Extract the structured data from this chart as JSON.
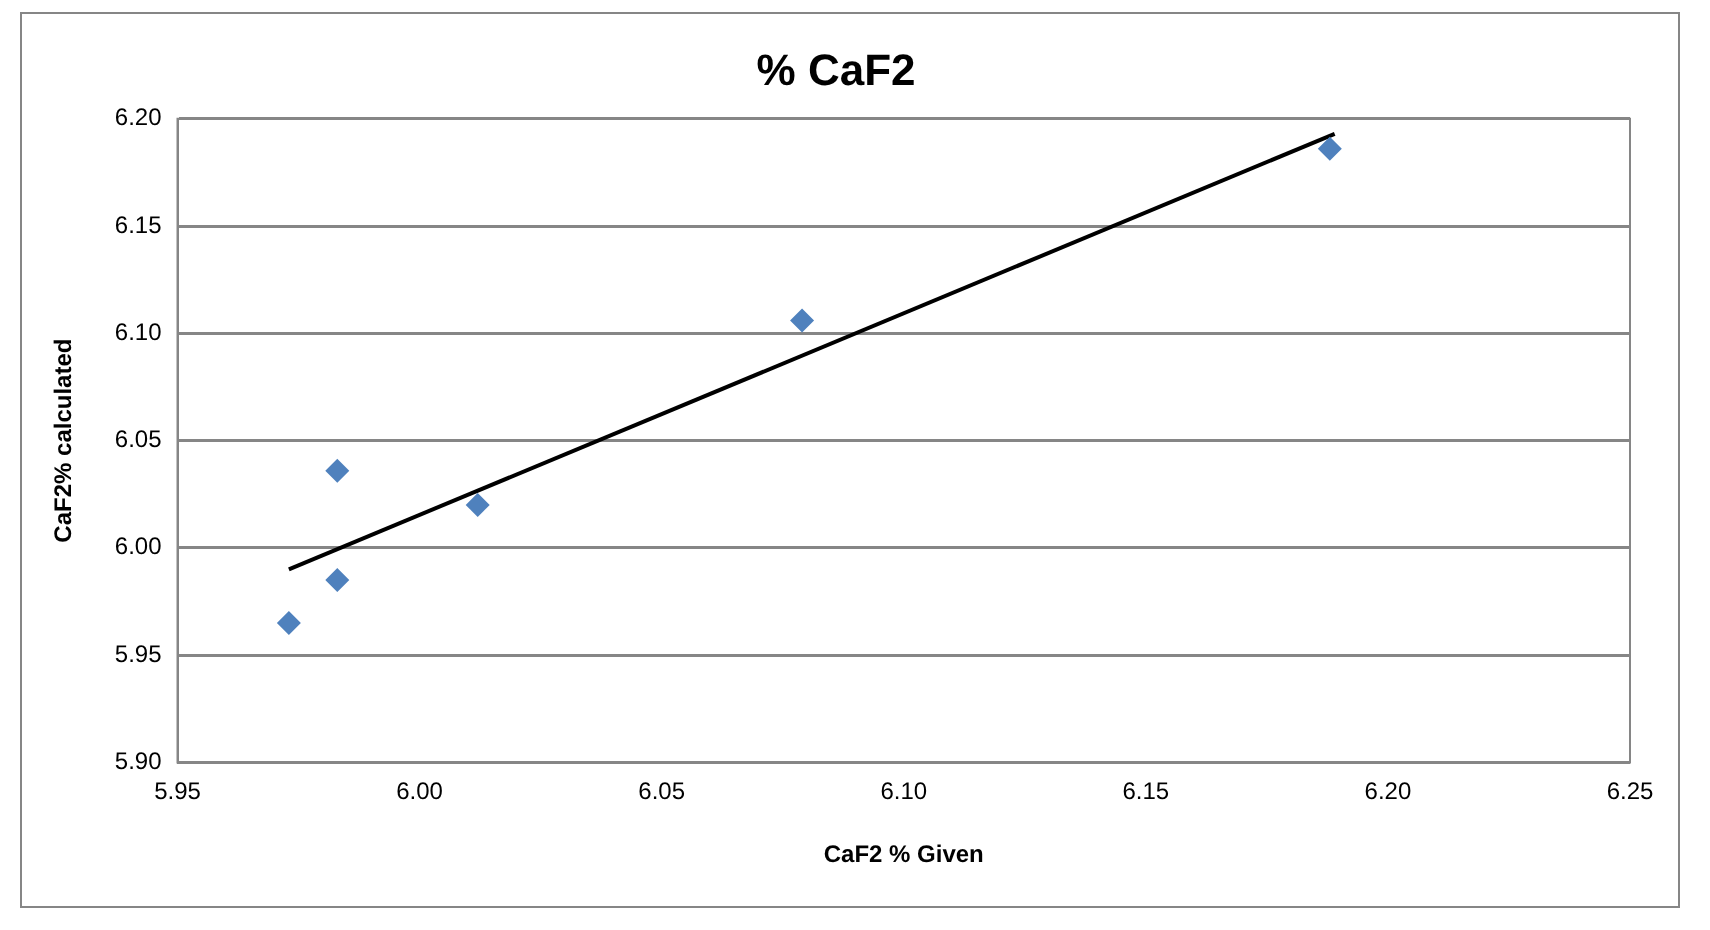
{
  "chart_data": {
    "type": "scatter",
    "title": "% CaF2",
    "xlabel": "CaF2 % Given",
    "ylabel": "CaF2% calculated",
    "series": [
      {
        "type": "scatter",
        "marker": "diamond",
        "color": "#4f81bd",
        "x": [
          5.973,
          5.983,
          5.983,
          6.012,
          6.079,
          6.188
        ],
        "values": [
          5.965,
          6.036,
          5.985,
          6.02,
          6.106,
          6.186
        ]
      },
      {
        "type": "line",
        "marker": "none",
        "line_style": "solid",
        "color": "#000000",
        "x": [
          5.973,
          6.189
        ],
        "values": [
          5.99,
          6.193
        ]
      }
    ],
    "xlim": [
      5.95,
      6.25
    ],
    "ylim": [
      5.9,
      6.2
    ],
    "xticks": [
      {
        "value": 5.95,
        "label": "5.95"
      },
      {
        "value": 6.0,
        "label": "6.00"
      },
      {
        "value": 6.05,
        "label": "6.05"
      },
      {
        "value": 6.1,
        "label": "6.10"
      },
      {
        "value": 6.15,
        "label": "6.15"
      },
      {
        "value": 6.2,
        "label": "6.20"
      },
      {
        "value": 6.25,
        "label": "6.25"
      }
    ],
    "yticks": [
      {
        "value": 5.9,
        "label": "5.90"
      },
      {
        "value": 5.95,
        "label": "5.95"
      },
      {
        "value": 6.0,
        "label": "6.00"
      },
      {
        "value": 6.05,
        "label": "6.05"
      },
      {
        "value": 6.1,
        "label": "6.10"
      },
      {
        "value": 6.15,
        "label": "6.15"
      },
      {
        "value": 6.2,
        "label": "6.20"
      }
    ],
    "grid": "y",
    "legend": false
  }
}
